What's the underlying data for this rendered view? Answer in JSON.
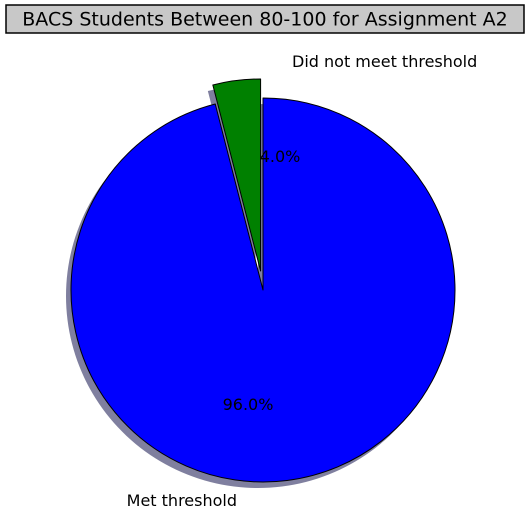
{
  "chart_data": {
    "type": "pie",
    "title": "BACS Students Between 80-100 for Assignment A2",
    "categories": [
      "Did not meet threshold",
      "Met threshold"
    ],
    "values": [
      4.0,
      96.0
    ],
    "percent_labels": [
      "4.0%",
      "96.0%"
    ],
    "colors": [
      "#008000",
      "#0000ff"
    ],
    "explode": [
      0.1,
      0
    ],
    "start_angle_deg": 90,
    "shadow": true,
    "title_box": true,
    "legend": "none"
  }
}
